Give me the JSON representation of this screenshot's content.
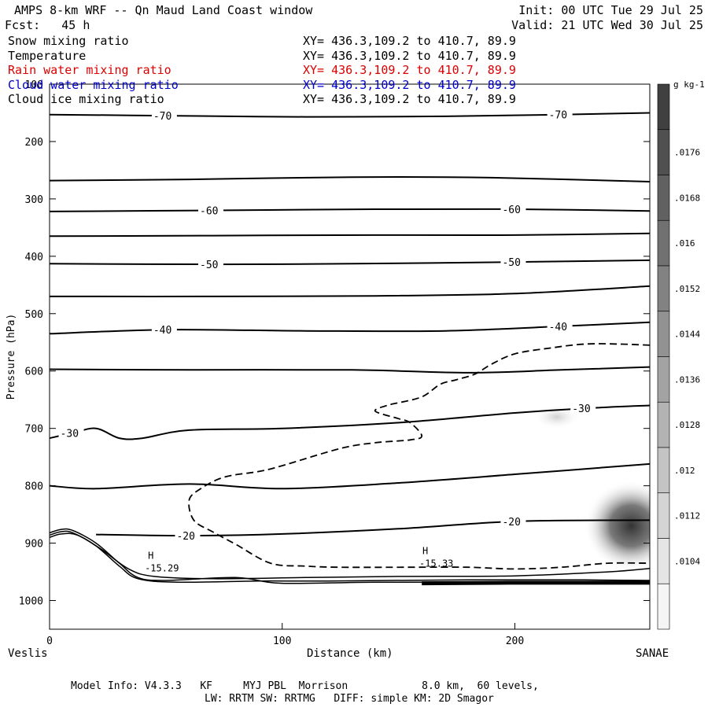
{
  "header": {
    "title": "AMPS 8-km WRF -- Qn Maud Land Coast window",
    "init": "Init: 00 UTC Tue 29 Jul 25",
    "forecast": "Fcst:   45 h",
    "valid": "Valid: 21 UTC Wed 30 Jul 25"
  },
  "fields": [
    {
      "name": "Snow mixing ratio",
      "xy": "XY= 436.3,109.2 to 410.7, 89.9",
      "color": "#000000"
    },
    {
      "name": "Temperature",
      "xy": "XY= 436.3,109.2 to 410.7, 89.9",
      "color": "#000000"
    },
    {
      "name": "Rain water mixing ratio",
      "xy": "XY= 436.3,109.2 to 410.7, 89.9",
      "color": "#dd0000"
    },
    {
      "name": "Cloud water mixing ratio",
      "xy": "XY= 436.3,109.2 to 410.7, 89.9",
      "color": "#0000cc"
    },
    {
      "name": "Cloud ice mixing ratio",
      "xy": "XY= 436.3,109.2 to 410.7, 89.9",
      "color": "#000000"
    }
  ],
  "chart_data": {
    "type": "cross-section",
    "xlabel": "Distance (km)",
    "ylabel": "Pressure (hPa)",
    "xlim": [
      0,
      258
    ],
    "ylim": [
      1050,
      100
    ],
    "x_ticks": [
      0,
      100,
      200
    ],
    "y_ticks": [
      100,
      200,
      300,
      400,
      500,
      600,
      700,
      800,
      900,
      1000
    ],
    "left_endpoint": "Veslis",
    "right_endpoint": "SANAE",
    "temperature_contours": [
      {
        "label": "-70",
        "points": [
          [
            0,
            153
          ],
          [
            50,
            155
          ],
          [
            110,
            157
          ],
          [
            170,
            156
          ],
          [
            220,
            153
          ],
          [
            258,
            150
          ]
        ]
      },
      {
        "label": "",
        "points": [
          [
            0,
            268
          ],
          [
            60,
            266
          ],
          [
            130,
            262
          ],
          [
            190,
            263
          ],
          [
            258,
            270
          ]
        ]
      },
      {
        "label": "-60",
        "points": [
          [
            0,
            322
          ],
          [
            70,
            320
          ],
          [
            140,
            318
          ],
          [
            200,
            318
          ],
          [
            258,
            321
          ]
        ]
      },
      {
        "label": "",
        "points": [
          [
            0,
            365
          ],
          [
            70,
            364
          ],
          [
            140,
            363
          ],
          [
            200,
            363
          ],
          [
            258,
            360
          ]
        ]
      },
      {
        "label": "-50",
        "points": [
          [
            0,
            413
          ],
          [
            70,
            414
          ],
          [
            130,
            413
          ],
          [
            200,
            410
          ],
          [
            258,
            407
          ]
        ]
      },
      {
        "label": "",
        "points": [
          [
            0,
            470
          ],
          [
            70,
            470
          ],
          [
            140,
            469
          ],
          [
            200,
            465
          ],
          [
            258,
            452
          ]
        ]
      },
      {
        "label": "-40",
        "points": [
          [
            0,
            535
          ],
          [
            50,
            528
          ],
          [
            110,
            530
          ],
          [
            170,
            530
          ],
          [
            220,
            522
          ],
          [
            258,
            515
          ]
        ]
      },
      {
        "label": "",
        "points": [
          [
            0,
            597
          ],
          [
            60,
            598
          ],
          [
            130,
            598
          ],
          [
            180,
            603
          ],
          [
            220,
            598
          ],
          [
            258,
            593
          ]
        ]
      },
      {
        "label": "-30",
        "points": [
          [
            0,
            717
          ],
          [
            10,
            708
          ],
          [
            20,
            700
          ],
          [
            30,
            717
          ],
          [
            40,
            717
          ],
          [
            60,
            703
          ],
          [
            100,
            700
          ],
          [
            150,
            690
          ],
          [
            200,
            673
          ],
          [
            230,
            665
          ],
          [
            258,
            660
          ]
        ]
      },
      {
        "label": "",
        "points": [
          [
            0,
            800
          ],
          [
            20,
            805
          ],
          [
            60,
            797
          ],
          [
            100,
            805
          ],
          [
            150,
            795
          ],
          [
            200,
            780
          ],
          [
            258,
            762
          ]
        ]
      },
      {
        "label": "-20",
        "points": [
          [
            20,
            885
          ],
          [
            60,
            887
          ],
          [
            100,
            884
          ],
          [
            150,
            875
          ],
          [
            200,
            862
          ],
          [
            258,
            860
          ]
        ]
      }
    ],
    "temperature_extrema": [
      {
        "kind": "H",
        "value": "-15.29",
        "x": 45,
        "p": 960
      },
      {
        "kind": "H",
        "value": "-15.33",
        "x": 163,
        "p": 952
      }
    ],
    "temperature_extreme_label": "H",
    "dashed_contour_points": [
      [
        258,
        555
      ],
      [
        245,
        553
      ],
      [
        230,
        553
      ],
      [
        215,
        560
      ],
      [
        200,
        570
      ],
      [
        190,
        588
      ],
      [
        183,
        605
      ],
      [
        175,
        615
      ],
      [
        168,
        623
      ],
      [
        160,
        645
      ],
      [
        148,
        657
      ],
      [
        145,
        660
      ],
      [
        140,
        670
      ],
      [
        150,
        683
      ],
      [
        155,
        690
      ],
      [
        160,
        713
      ],
      [
        155,
        720
      ],
      [
        140,
        725
      ],
      [
        125,
        735
      ],
      [
        100,
        765
      ],
      [
        90,
        775
      ],
      [
        75,
        785
      ],
      [
        65,
        805
      ],
      [
        60,
        825
      ],
      [
        62,
        860
      ],
      [
        70,
        880
      ],
      [
        80,
        902
      ],
      [
        95,
        935
      ],
      [
        110,
        940
      ],
      [
        125,
        942
      ],
      [
        155,
        942
      ],
      [
        180,
        942
      ],
      [
        200,
        945
      ],
      [
        220,
        942
      ],
      [
        240,
        935
      ],
      [
        258,
        935
      ]
    ],
    "shading": {
      "field": "Cloud ice mixing ratio",
      "units": "g kg-1",
      "colorbar_labels": [
        ".0176",
        ".0168",
        ".016",
        ".0152",
        ".0144",
        ".0136",
        ".0128",
        ".012",
        ".0112",
        ".0104"
      ],
      "maxima": [
        {
          "x": 250,
          "p": 870,
          "value": 0.0176
        },
        {
          "x": 218,
          "p": 680,
          "value": 0.0104
        }
      ]
    }
  },
  "footer": {
    "line1": "Model Info: V4.3.3   KF     MYJ PBL  Morrison            8.0 km,  60 levels,",
    "line2": "LW: RRTM SW: RRTMG   DIFF: simple KM: 2D Smagor"
  }
}
